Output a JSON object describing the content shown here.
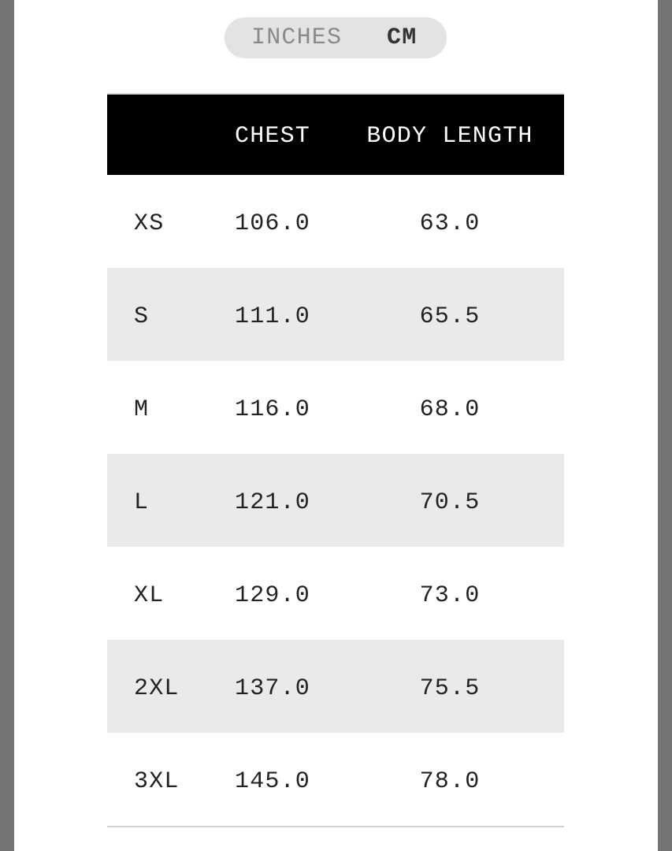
{
  "unit_toggle": {
    "options": [
      "INCHES",
      "CM"
    ],
    "selected": "CM"
  },
  "table": {
    "headers": [
      "",
      "CHEST",
      "BODY LENGTH"
    ],
    "rows": [
      {
        "size": "XS",
        "chest": "106.0",
        "body_length": "63.0"
      },
      {
        "size": "S",
        "chest": "111.0",
        "body_length": "65.5"
      },
      {
        "size": "M",
        "chest": "116.0",
        "body_length": "68.0"
      },
      {
        "size": "L",
        "chest": "121.0",
        "body_length": "70.5"
      },
      {
        "size": "XL",
        "chest": "129.0",
        "body_length": "73.0"
      },
      {
        "size": "2XL",
        "chest": "137.0",
        "body_length": "75.5"
      },
      {
        "size": "3XL",
        "chest": "145.0",
        "body_length": "78.0"
      }
    ]
  }
}
